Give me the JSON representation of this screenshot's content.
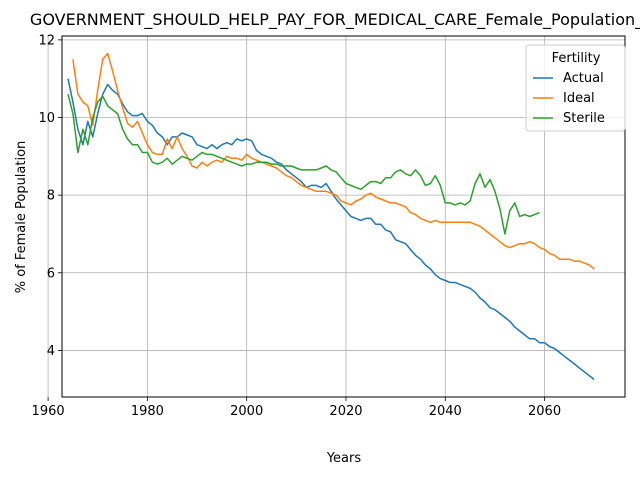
{
  "chart_data": {
    "type": "line",
    "title": "GOVERNMENT_SHOULD_HELP_PAY_FOR_MEDICAL_CARE_Female_Population_Sc",
    "xlabel": "Years",
    "ylabel": "% of Female Population",
    "xlim": [
      1962.8,
      2076.2
    ],
    "ylim": [
      2.8,
      12.1
    ],
    "xticks": [
      1960,
      1980,
      2000,
      2020,
      2040,
      2060
    ],
    "yticks": [
      4,
      6,
      8,
      10,
      12
    ],
    "grid": true,
    "legend": {
      "title": "Fertility",
      "placement": "top-right"
    },
    "series": [
      {
        "name": "Actual",
        "color": "#1f77b4",
        "x": [
          1964,
          1965,
          1966,
          1967,
          1968,
          1969,
          1970,
          1971,
          1972,
          1973,
          1974,
          1975,
          1976,
          1977,
          1978,
          1979,
          1980,
          1981,
          1982,
          1983,
          1984,
          1985,
          1986,
          1987,
          1988,
          1989,
          1990,
          1991,
          1992,
          1993,
          1994,
          1995,
          1996,
          1997,
          1998,
          1999,
          2000,
          2001,
          2002,
          2003,
          2004,
          2005,
          2006,
          2007,
          2008,
          2009,
          2010,
          2011,
          2012,
          2013,
          2014,
          2015,
          2016,
          2017,
          2018,
          2019,
          2020,
          2021,
          2022,
          2023,
          2024,
          2025,
          2026,
          2027,
          2028,
          2029,
          2030,
          2031,
          2032,
          2033,
          2034,
          2035,
          2036,
          2037,
          2038,
          2039,
          2040,
          2041,
          2042,
          2043,
          2044,
          2045,
          2046,
          2047,
          2048,
          2049,
          2050,
          2051,
          2052,
          2053,
          2054,
          2055,
          2056,
          2057,
          2058,
          2059,
          2060,
          2061,
          2062,
          2063,
          2064,
          2065,
          2066,
          2067,
          2068,
          2069,
          2070
        ],
        "y": [
          11.0,
          10.4,
          9.7,
          9.3,
          9.9,
          9.5,
          10.1,
          10.6,
          10.85,
          10.7,
          10.6,
          10.35,
          10.15,
          10.05,
          10.05,
          10.1,
          9.9,
          9.8,
          9.6,
          9.5,
          9.3,
          9.5,
          9.5,
          9.6,
          9.55,
          9.5,
          9.3,
          9.25,
          9.2,
          9.3,
          9.2,
          9.3,
          9.35,
          9.3,
          9.45,
          9.4,
          9.45,
          9.4,
          9.15,
          9.05,
          9.0,
          8.95,
          8.85,
          8.8,
          8.65,
          8.55,
          8.45,
          8.35,
          8.2,
          8.25,
          8.25,
          8.2,
          8.3,
          8.1,
          7.9,
          7.75,
          7.6,
          7.45,
          7.4,
          7.35,
          7.4,
          7.4,
          7.25,
          7.25,
          7.1,
          7.05,
          6.85,
          6.8,
          6.75,
          6.6,
          6.45,
          6.35,
          6.2,
          6.1,
          5.95,
          5.85,
          5.8,
          5.75,
          5.75,
          5.7,
          5.65,
          5.6,
          5.5,
          5.35,
          5.25,
          5.1,
          5.05,
          4.95,
          4.85,
          4.75,
          4.6,
          4.5,
          4.4,
          4.3,
          4.3,
          4.2,
          4.2,
          4.1,
          4.05,
          3.95,
          3.85,
          3.75,
          3.65,
          3.55,
          3.45,
          3.35,
          3.25
        ]
      },
      {
        "name": "Ideal",
        "color": "#ff7f0e",
        "x": [
          1965,
          1966,
          1967,
          1968,
          1969,
          1970,
          1971,
          1972,
          1973,
          1974,
          1975,
          1976,
          1977,
          1978,
          1979,
          1980,
          1981,
          1982,
          1983,
          1984,
          1985,
          1986,
          1987,
          1988,
          1989,
          1990,
          1991,
          1992,
          1993,
          1994,
          1995,
          1996,
          1997,
          1998,
          1999,
          2000,
          2001,
          2002,
          2003,
          2004,
          2005,
          2006,
          2007,
          2008,
          2009,
          2010,
          2011,
          2012,
          2013,
          2014,
          2015,
          2016,
          2017,
          2018,
          2019,
          2020,
          2021,
          2022,
          2023,
          2024,
          2025,
          2026,
          2027,
          2028,
          2029,
          2030,
          2031,
          2032,
          2033,
          2034,
          2035,
          2036,
          2037,
          2038,
          2039,
          2040,
          2041,
          2042,
          2043,
          2044,
          2045,
          2046,
          2047,
          2048,
          2049,
          2050,
          2051,
          2052,
          2053,
          2054,
          2055,
          2056,
          2057,
          2058,
          2059,
          2060,
          2061,
          2062,
          2063,
          2064,
          2065,
          2066,
          2067,
          2068,
          2069,
          2070
        ],
        "y": [
          11.5,
          10.6,
          10.4,
          10.3,
          9.8,
          10.7,
          11.5,
          11.65,
          11.2,
          10.7,
          10.25,
          9.85,
          9.75,
          9.9,
          9.6,
          9.3,
          9.1,
          9.05,
          9.05,
          9.45,
          9.2,
          9.5,
          9.2,
          9.0,
          8.75,
          8.7,
          8.85,
          8.75,
          8.85,
          8.9,
          8.85,
          9.0,
          8.95,
          8.95,
          8.9,
          9.05,
          8.95,
          8.9,
          8.85,
          8.8,
          8.75,
          8.7,
          8.6,
          8.5,
          8.45,
          8.35,
          8.25,
          8.2,
          8.15,
          8.1,
          8.1,
          8.1,
          8.05,
          8.0,
          7.85,
          7.8,
          7.75,
          7.85,
          7.9,
          8.0,
          8.05,
          7.95,
          7.9,
          7.85,
          7.8,
          7.8,
          7.75,
          7.7,
          7.55,
          7.5,
          7.4,
          7.35,
          7.3,
          7.35,
          7.3,
          7.3,
          7.3,
          7.3,
          7.3,
          7.3,
          7.3,
          7.25,
          7.2,
          7.1,
          7.0,
          6.9,
          6.8,
          6.7,
          6.65,
          6.7,
          6.75,
          6.75,
          6.8,
          6.75,
          6.65,
          6.6,
          6.5,
          6.45,
          6.35,
          6.35,
          6.35,
          6.3,
          6.3,
          6.25,
          6.2,
          6.1
        ]
      },
      {
        "name": "Sterile",
        "color": "#2ca02c",
        "x": [
          1964,
          1965,
          1966,
          1967,
          1968,
          1969,
          1970,
          1971,
          1972,
          1973,
          1974,
          1975,
          1976,
          1977,
          1978,
          1979,
          1980,
          1981,
          1982,
          1983,
          1984,
          1985,
          1986,
          1987,
          1988,
          1989,
          1990,
          1991,
          1992,
          1993,
          1994,
          1995,
          1996,
          1997,
          1998,
          1999,
          2000,
          2001,
          2002,
          2003,
          2004,
          2005,
          2006,
          2007,
          2008,
          2009,
          2010,
          2011,
          2012,
          2013,
          2014,
          2015,
          2016,
          2017,
          2018,
          2019,
          2020,
          2021,
          2022,
          2023,
          2024,
          2025,
          2026,
          2027,
          2028,
          2029,
          2030,
          2031,
          2032,
          2033,
          2034,
          2035,
          2036,
          2037,
          2038,
          2039,
          2040,
          2041,
          2042,
          2043,
          2044,
          2045,
          2046,
          2047,
          2048,
          2049,
          2050,
          2051,
          2052,
          2053,
          2054,
          2055,
          2056,
          2057,
          2058,
          2059
        ],
        "y": [
          10.6,
          10.1,
          9.1,
          9.7,
          9.3,
          10.0,
          10.4,
          10.55,
          10.3,
          10.2,
          10.1,
          9.7,
          9.45,
          9.3,
          9.3,
          9.1,
          9.1,
          8.85,
          8.8,
          8.85,
          8.95,
          8.8,
          8.9,
          9.0,
          8.95,
          8.9,
          9.0,
          9.1,
          9.05,
          9.05,
          9.0,
          8.95,
          8.9,
          8.85,
          8.8,
          8.75,
          8.8,
          8.8,
          8.85,
          8.85,
          8.85,
          8.8,
          8.8,
          8.75,
          8.75,
          8.75,
          8.7,
          8.65,
          8.65,
          8.65,
          8.65,
          8.7,
          8.75,
          8.65,
          8.6,
          8.45,
          8.3,
          8.25,
          8.2,
          8.15,
          8.25,
          8.35,
          8.35,
          8.3,
          8.45,
          8.45,
          8.6,
          8.65,
          8.55,
          8.5,
          8.65,
          8.5,
          8.25,
          8.3,
          8.5,
          8.25,
          7.8,
          7.8,
          7.75,
          7.8,
          7.75,
          7.85,
          8.3,
          8.55,
          8.2,
          8.4,
          8.1,
          7.65,
          7.0,
          7.6,
          7.8,
          7.45,
          7.5,
          7.45,
          7.5,
          7.55
        ]
      }
    ]
  }
}
